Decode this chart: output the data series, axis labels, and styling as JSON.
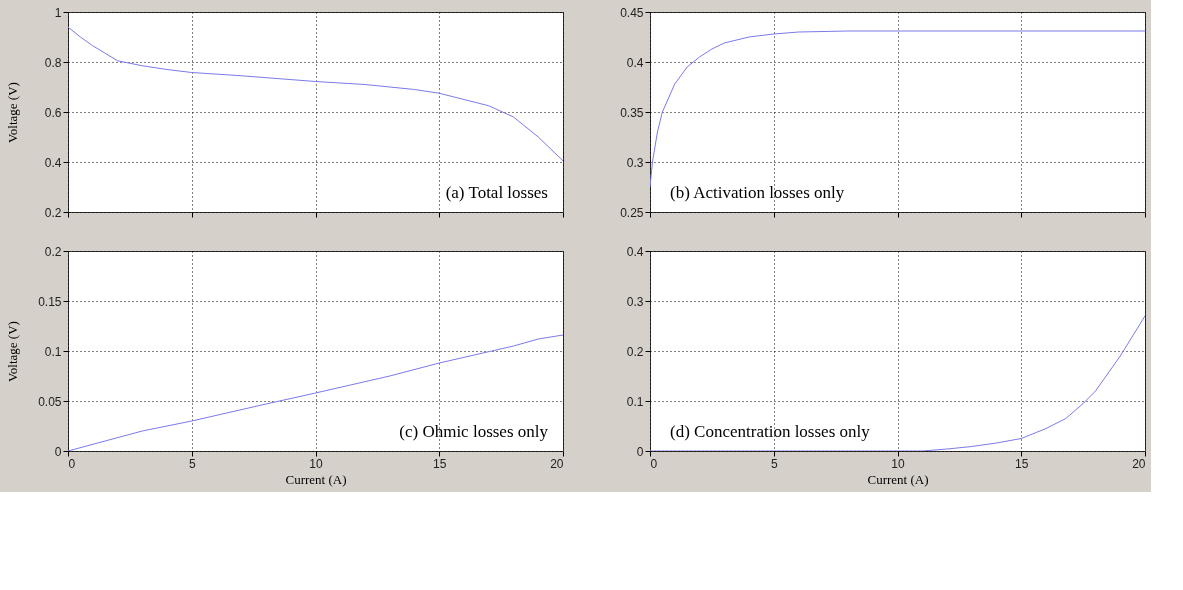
{
  "chart_data": [
    {
      "type": "line",
      "ylabel": "Voltage (V)",
      "annotations": [
        "(a) Total losses"
      ],
      "xlim": [
        0,
        20
      ],
      "xticks": [
        0,
        5,
        10,
        15,
        20
      ],
      "ylim": [
        0.2,
        1
      ],
      "yticks": [
        0.2,
        0.4,
        0.6,
        0.8,
        1
      ],
      "grid": true,
      "tick_labels": "y",
      "line_style": "solid",
      "series": [
        {
          "color": "#7b7bea",
          "x": [
            0,
            0.5,
            1,
            1.5,
            2,
            3,
            4,
            5,
            7,
            10,
            12,
            14,
            15,
            16,
            17,
            18,
            19,
            20
          ],
          "values": [
            0.94,
            0.9,
            0.865,
            0.835,
            0.805,
            0.785,
            0.77,
            0.758,
            0.745,
            0.722,
            0.71,
            0.69,
            0.675,
            0.65,
            0.625,
            0.58,
            0.5,
            0.405
          ]
        }
      ]
    },
    {
      "type": "line",
      "annotations": [
        "(b) Activation losses only"
      ],
      "xlim": [
        0,
        20
      ],
      "xticks": [
        0,
        5,
        10,
        15,
        20
      ],
      "ylim": [
        0.25,
        0.45
      ],
      "yticks": [
        0.25,
        0.3,
        0.35,
        0.4,
        0.45
      ],
      "grid": true,
      "tick_labels": "y",
      "line_style": "solid",
      "series": [
        {
          "color": "#7b7bea",
          "x": [
            0,
            0.1,
            0.3,
            0.5,
            1,
            1.5,
            2,
            2.5,
            3,
            4,
            5,
            6,
            8,
            20
          ],
          "values": [
            0.275,
            0.3,
            0.33,
            0.35,
            0.378,
            0.395,
            0.405,
            0.413,
            0.419,
            0.425,
            0.428,
            0.43,
            0.431,
            0.431
          ]
        }
      ]
    },
    {
      "type": "line",
      "ylabel": "Voltage (V)",
      "xlabel": "Current (A)",
      "annotations": [
        "(c) Ohmic losses only"
      ],
      "xlim": [
        0,
        20
      ],
      "xticks": [
        0,
        5,
        10,
        15,
        20
      ],
      "ylim": [
        0,
        0.2
      ],
      "yticks": [
        0,
        0.05,
        0.1,
        0.15,
        0.2
      ],
      "grid": true,
      "line_style": "solid",
      "series": [
        {
          "color": "#7b7bea",
          "x": [
            0,
            3,
            5,
            8,
            10,
            13,
            15,
            18,
            19,
            20
          ],
          "values": [
            0,
            0.02,
            0.03,
            0.047,
            0.058,
            0.075,
            0.088,
            0.105,
            0.112,
            0.116
          ]
        }
      ]
    },
    {
      "type": "line",
      "xlabel": "Current (A)",
      "annotations": [
        "(d) Concentration losses only"
      ],
      "xlim": [
        0,
        20
      ],
      "xticks": [
        0,
        5,
        10,
        15,
        20
      ],
      "ylim": [
        0,
        0.4
      ],
      "yticks": [
        0,
        0.1,
        0.2,
        0.3,
        0.4
      ],
      "grid": true,
      "line_style": "solid",
      "series": [
        {
          "color": "#7b7bea",
          "x": [
            0,
            11,
            12,
            13,
            14,
            15,
            16,
            16.8,
            17.5,
            18,
            19,
            20
          ],
          "values": [
            0,
            0,
            0.004,
            0.009,
            0.016,
            0.025,
            0.045,
            0.065,
            0.095,
            0.12,
            0.19,
            0.27
          ]
        }
      ]
    }
  ]
}
